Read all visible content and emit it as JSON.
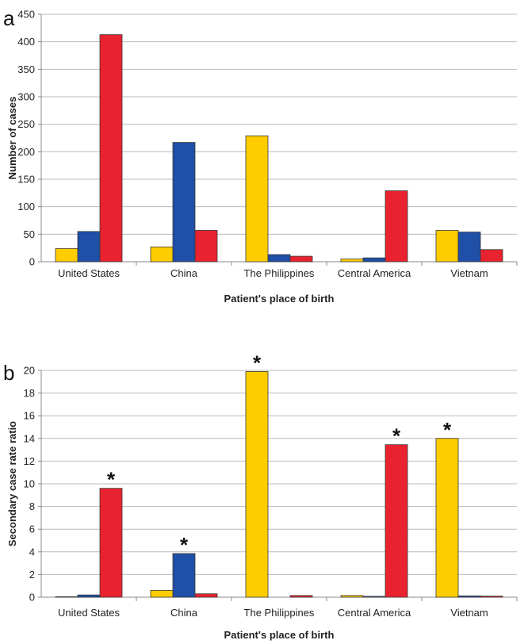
{
  "colors": {
    "yellow": "#ffcc00",
    "blue": "#1f4fa6",
    "red": "#e8222e",
    "grid": "#b9b9b9",
    "axis": "#888888"
  },
  "chart_data": [
    {
      "type": "bar",
      "panel_label": "a",
      "categories": [
        "United States",
        "China",
        "The Philippines",
        "Central America",
        "Vietnam"
      ],
      "series": [
        {
          "color": "yellow",
          "values": [
            24,
            27,
            229,
            5,
            57
          ]
        },
        {
          "color": "blue",
          "values": [
            55,
            217,
            13,
            7,
            54
          ]
        },
        {
          "color": "red",
          "values": [
            413,
            57,
            10,
            129,
            22
          ]
        }
      ],
      "xlabel": "Patient's place of birth",
      "ylabel": "Number of cases",
      "ylim": [
        0,
        450
      ],
      "yticks": [
        0,
        50,
        100,
        150,
        200,
        250,
        300,
        350,
        400,
        450
      ],
      "grid": true,
      "markers": []
    },
    {
      "type": "bar",
      "panel_label": "b",
      "categories": [
        "United States",
        "China",
        "The Philippines",
        "Central America",
        "Vietnam"
      ],
      "series": [
        {
          "color": "yellow",
          "values": [
            0.05,
            0.6,
            19.9,
            0.15,
            14.0
          ]
        },
        {
          "color": "blue",
          "values": [
            0.2,
            3.85,
            0,
            0.08,
            0.12
          ]
        },
        {
          "color": "red",
          "values": [
            9.6,
            0.3,
            0.15,
            13.45,
            0.1
          ]
        }
      ],
      "xlabel": "Patient's place of birth",
      "ylabel": "Secondary case rate ratio",
      "ylim": [
        0,
        20
      ],
      "yticks": [
        0,
        2,
        4,
        6,
        8,
        10,
        12,
        14,
        16,
        18,
        20
      ],
      "grid": true,
      "markers": [
        {
          "category": 0,
          "series": 2,
          "text": "*"
        },
        {
          "category": 1,
          "series": 1,
          "text": "*"
        },
        {
          "category": 2,
          "series": 0,
          "text": "*"
        },
        {
          "category": 3,
          "series": 2,
          "text": "*"
        },
        {
          "category": 4,
          "series": 0,
          "text": "*"
        }
      ]
    }
  ]
}
